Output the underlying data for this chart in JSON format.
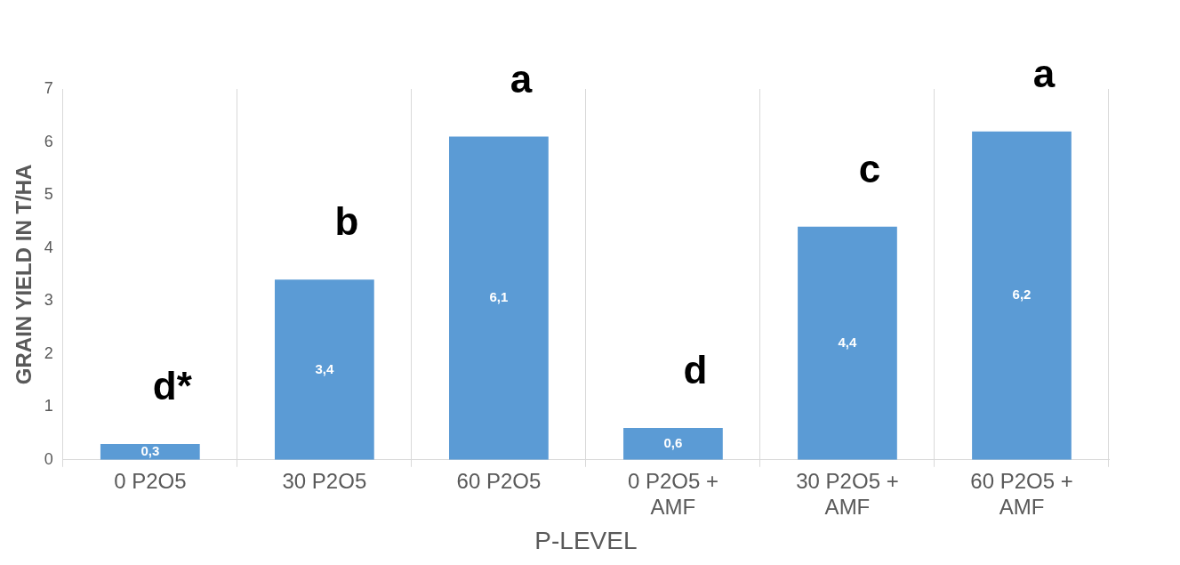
{
  "chart_data": {
    "type": "bar",
    "xlabel": "P-LEVEL",
    "ylabel": "GRAIN YIELD IN T/HA",
    "categories": [
      "0 P2O5",
      "30 P2O5",
      "60 P2O5",
      "0 P2O5 + AMF",
      "30 P2O5 + AMF",
      "60 P2O5 + AMF"
    ],
    "values": [
      0.3,
      3.4,
      6.1,
      0.6,
      4.4,
      6.2
    ],
    "color": "#5b9bd5",
    "ylim": [
      0,
      7
    ],
    "yticks": [
      0,
      1,
      2,
      3,
      4,
      5,
      6,
      7
    ],
    "grid": "x",
    "legend": false,
    "value_labels": [
      "0,3",
      "3,4",
      "6,1",
      "0,6",
      "4,4",
      "6,2"
    ],
    "annotations": [
      {
        "text": "d*",
        "x": "0 P2O5",
        "y": 0.3
      },
      {
        "text": "b",
        "x": "30 P2O5",
        "y": 3.4
      },
      {
        "text": "a",
        "x": "60 P2O5",
        "y": 6.1
      },
      {
        "text": "d",
        "x": "0 P2O5 + AMF",
        "y": 0.6
      },
      {
        "text": "c",
        "x": "30 P2O5 + AMF",
        "y": 4.4
      },
      {
        "text": "a",
        "x": "60 P2O5 + AMF",
        "y": 6.2
      }
    ]
  }
}
